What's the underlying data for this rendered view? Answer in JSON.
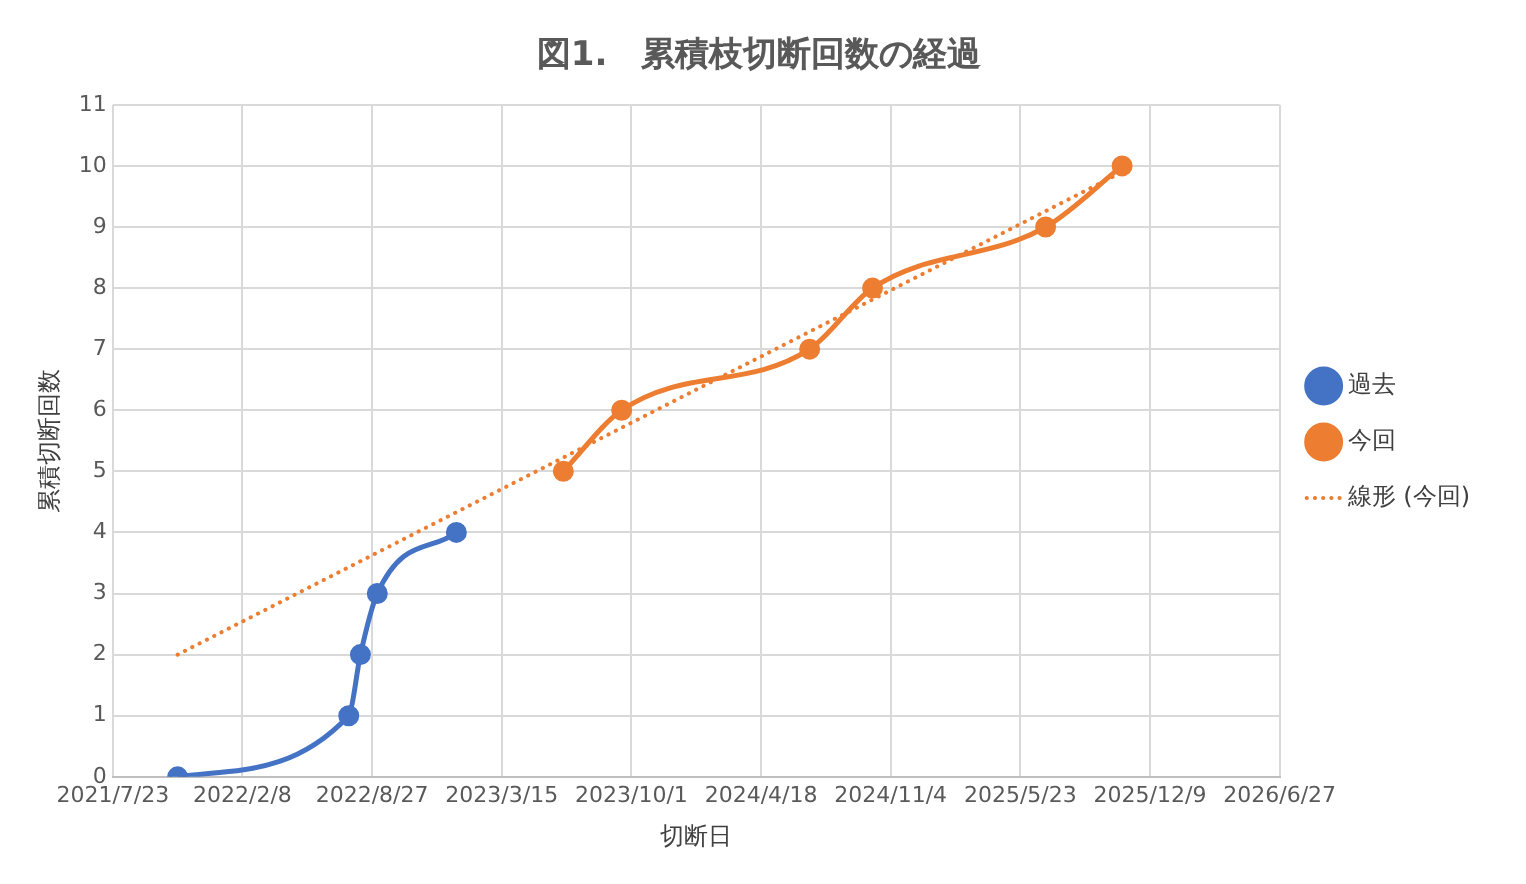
{
  "chart_data": {
    "type": "line",
    "title": "図1.　累積枝切断回数の経過",
    "xlabel": "切断日",
    "ylabel": "累積切断回数",
    "xlim": [
      "2021-07-23",
      "2026-06-27"
    ],
    "xticks": [
      {
        "value": "2021-07-23",
        "label": "2021/7/23"
      },
      {
        "value": "2022-02-08",
        "label": "2022/2/8"
      },
      {
        "value": "2022-08-27",
        "label": "2022/8/27"
      },
      {
        "value": "2023-03-15",
        "label": "2023/3/15"
      },
      {
        "value": "2023-10-01",
        "label": "2023/10/1"
      },
      {
        "value": "2024-04-18",
        "label": "2024/4/18"
      },
      {
        "value": "2024-11-04",
        "label": "2024/11/4"
      },
      {
        "value": "2025-05-23",
        "label": "2025/5/23"
      },
      {
        "value": "2025-12-09",
        "label": "2025/12/9"
      },
      {
        "value": "2026-06-27",
        "label": "2026/6/27"
      }
    ],
    "ylim": [
      0,
      11
    ],
    "yticks": [
      0,
      1,
      2,
      3,
      4,
      5,
      6,
      7,
      8,
      9,
      10,
      11
    ],
    "grid": true,
    "legend": "right",
    "marker": "circle",
    "series": [
      {
        "name": "過去",
        "color": "#4472c4",
        "x": [
          "2021-10-31",
          "2022-07-22",
          "2022-08-09",
          "2022-09-04",
          "2023-01-04"
        ],
        "values": [
          0,
          1,
          2,
          3,
          4
        ]
      },
      {
        "name": "今回",
        "color": "#ed7d31",
        "x": [
          "2023-06-18",
          "2023-09-16",
          "2024-07-02",
          "2024-10-07",
          "2025-07-01",
          "2025-10-27"
        ],
        "values": [
          5,
          6,
          7,
          8,
          9,
          10
        ]
      },
      {
        "name": "線形 (今回)",
        "color": "#ed7d31",
        "type": "line",
        "marker": "none",
        "line_style": "dotted",
        "x": [
          "2021-10-31",
          "2025-10-27"
        ],
        "values": [
          2.0,
          9.9
        ]
      }
    ]
  }
}
